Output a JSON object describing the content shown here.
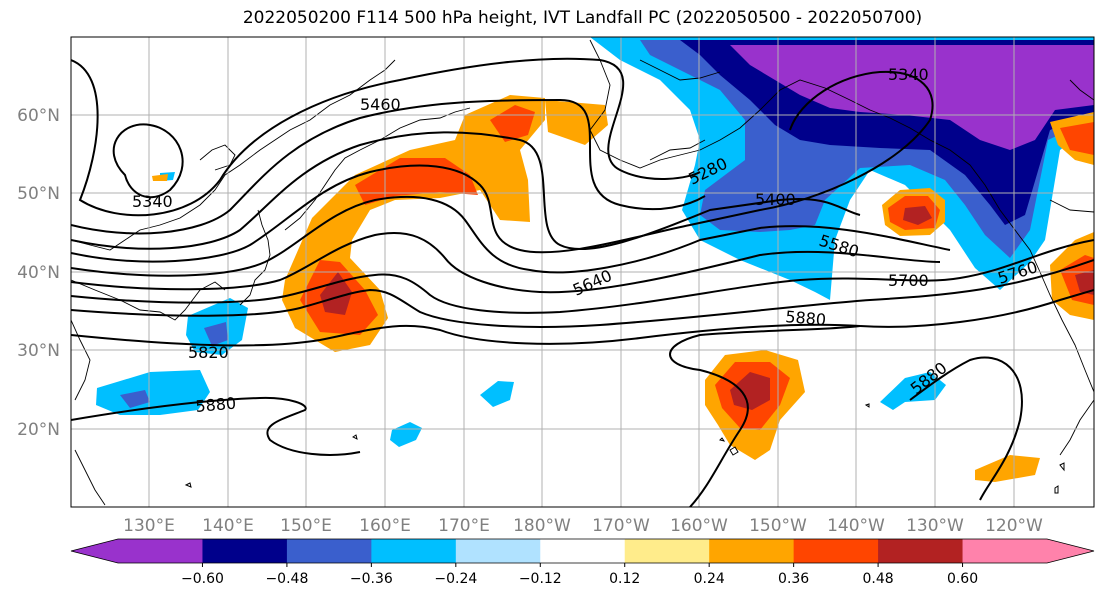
{
  "title": "2022050200 F114 500 hPa height, IVT Landfall PC (2022050500 - 2022050700)",
  "lat_labels": [
    "60°N",
    "50°N",
    "40°N",
    "30°N",
    "20°N"
  ],
  "lon_labels": [
    "130°E",
    "140°E",
    "150°E",
    "160°E",
    "170°E",
    "180°W",
    "170°W",
    "160°W",
    "150°W",
    "140°W",
    "130°W",
    "120°W"
  ],
  "contour_labels": [
    "5340",
    "5460",
    "5340",
    "5280",
    "5400",
    "5580",
    "5640",
    "5700",
    "5760",
    "5820",
    "5880",
    "5880",
    "5880"
  ],
  "colorbar": {
    "ticks": [
      "−0.60",
      "−0.48",
      "−0.36",
      "−0.24",
      "−0.12",
      "0.12",
      "0.24",
      "0.36",
      "0.48",
      "0.60"
    ],
    "colors": [
      "#9932cc",
      "#00008b",
      "#3a5fcd",
      "#00bfff",
      "#b0e2ff",
      "#ffffff",
      "#ffec8b",
      "#ffa500",
      "#ff4500",
      "#b22222",
      "#ff82ab"
    ]
  }
}
